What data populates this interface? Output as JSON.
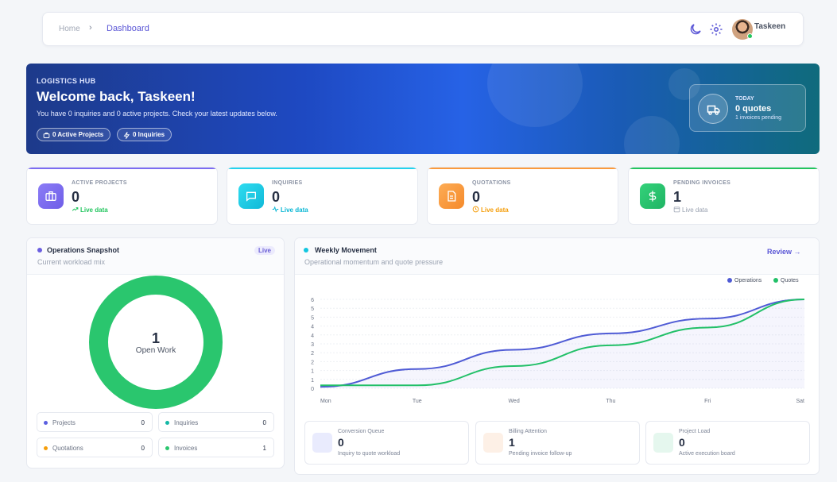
{
  "breadcrumb": {
    "home": "Home",
    "current": "Dashboard"
  },
  "header": {
    "user_name": "Taskeen",
    "icons": [
      "moon-icon",
      "gear-icon"
    ]
  },
  "hero": {
    "eyebrow": "LOGISTICS HUB",
    "title": "Welcome back, Taskeen!",
    "subtitle": "You have 0 inquiries and 0 active projects. Check your latest updates below.",
    "chips": [
      "0 Active Projects",
      "0 Inquiries"
    ],
    "today": {
      "label": "TODAY",
      "value": "0 quotes",
      "note": "1 invoices pending"
    }
  },
  "stats": [
    {
      "label": "ACTIVE PROJECTS",
      "value": "0",
      "trend": "Live data",
      "color": "#7c6cf2",
      "trend_color": "#22c55e"
    },
    {
      "label": "INQUIRIES",
      "value": "0",
      "trend": "Live data",
      "color": "#22d3ee",
      "trend_color": "#06b6d4"
    },
    {
      "label": "QUOTATIONS",
      "value": "0",
      "trend": "Live data",
      "color": "#fb9a3c",
      "trend_color": "#f59e0b"
    },
    {
      "label": "PENDING INVOICES",
      "value": "1",
      "trend": "Live data",
      "color": "#22c55e",
      "trend_color": "#9aa2b1"
    }
  ],
  "snapshot": {
    "title": "Operations Snapshot",
    "subtitle": "Current workload mix",
    "badge": "Live",
    "center_value": "1",
    "center_label": "Open Work",
    "donut_color": "#2ac66e",
    "legend": [
      {
        "name": "Projects",
        "value": "0",
        "color": "#5b5fe0"
      },
      {
        "name": "Inquiries",
        "value": "0",
        "color": "#14b8a6"
      },
      {
        "name": "Quotations",
        "value": "0",
        "color": "#f59e0b"
      },
      {
        "name": "Invoices",
        "value": "1",
        "color": "#2ac66e"
      }
    ]
  },
  "weekly": {
    "title": "Weekly Movement",
    "subtitle": "Operational momentum and quote pressure",
    "review_label": "Review →",
    "minis": [
      {
        "label": "Conversion Queue",
        "value": "0",
        "note": "Inquiry to quote workload",
        "color": "#e9ebfd"
      },
      {
        "label": "Billing Attention",
        "value": "1",
        "note": "Pending invoice follow-up",
        "color": "#fdf0e6"
      },
      {
        "label": "Project Load",
        "value": "0",
        "note": "Active execution board",
        "color": "#e5f7ee"
      }
    ]
  },
  "chart_data": {
    "type": "line",
    "categories": [
      "Mon",
      "Tue",
      "Wed",
      "Thu",
      "Fri",
      "Sat"
    ],
    "series": [
      {
        "name": "Operations",
        "color": "#4f5bd5",
        "values": [
          0.1,
          1.3,
          2.6,
          3.7,
          4.7,
          6.0
        ]
      },
      {
        "name": "Quotes",
        "color": "#22c068",
        "values": [
          0.2,
          0.2,
          1.5,
          2.9,
          4.1,
          6.0
        ]
      }
    ],
    "yticks": [
      "6",
      "5",
      "5",
      "4",
      "4",
      "3",
      "2",
      "2",
      "1",
      "1",
      "0"
    ],
    "ylim": [
      0,
      6
    ],
    "legend": "top-right",
    "grid": true
  }
}
